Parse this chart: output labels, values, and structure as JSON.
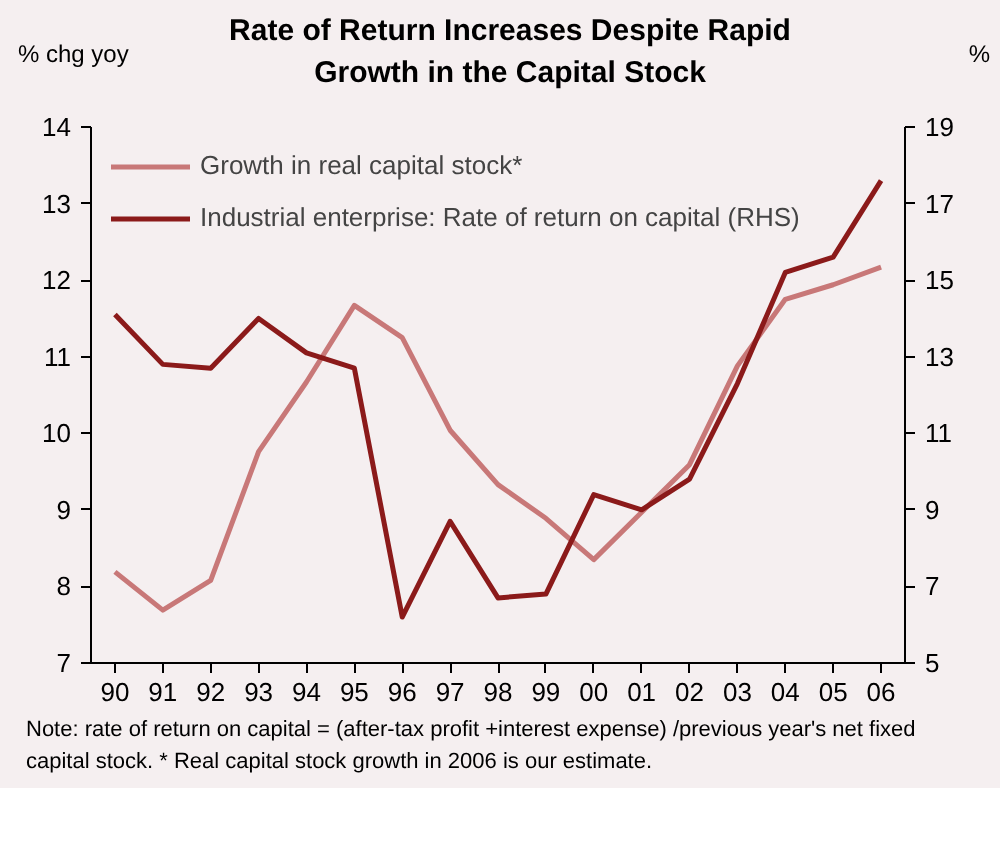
{
  "chart_data": {
    "type": "line",
    "title": "Rate of Return Increases Despite Rapid\nGrowth in the Capital Stock",
    "ylabel": "% chg yoy",
    "y2label": "%",
    "categories": [
      "90",
      "91",
      "92",
      "93",
      "94",
      "95",
      "96",
      "97",
      "98",
      "99",
      "00",
      "01",
      "02",
      "03",
      "04",
      "05",
      "06"
    ],
    "series": [
      {
        "name": "Growth in real capital stock*",
        "color": "#c87878",
        "values": [
          8.19,
          7.69,
          8.08,
          9.76,
          10.67,
          11.67,
          11.25,
          10.04,
          9.33,
          8.89,
          8.35,
          8.97,
          9.59,
          10.88,
          11.75,
          11.94,
          12.17
        ]
      },
      {
        "name": "Industrial enterprise: Rate of return on capital (RHS)",
        "color": "#8b1a1a",
        "axis": "y2",
        "values": [
          14.1,
          12.8,
          12.7,
          14.0,
          13.1,
          12.7,
          6.2,
          8.7,
          6.7,
          6.8,
          9.4,
          9.0,
          9.8,
          12.3,
          15.2,
          15.6,
          17.6
        ]
      }
    ],
    "ylim": [
      7,
      14
    ],
    "yticks": [
      7,
      8,
      9,
      10,
      11,
      12,
      13,
      14
    ],
    "y2lim": [
      5,
      19
    ],
    "y2ticks": [
      5,
      7,
      9,
      11,
      13,
      15,
      17,
      19
    ],
    "legend": "top left",
    "grid": false,
    "annotations": [
      "Note: rate of return on capital = (after-tax profit +interest expense) /previous year's net fixed capital stock. * Real capital stock growth in 2006 is our estimate."
    ]
  }
}
